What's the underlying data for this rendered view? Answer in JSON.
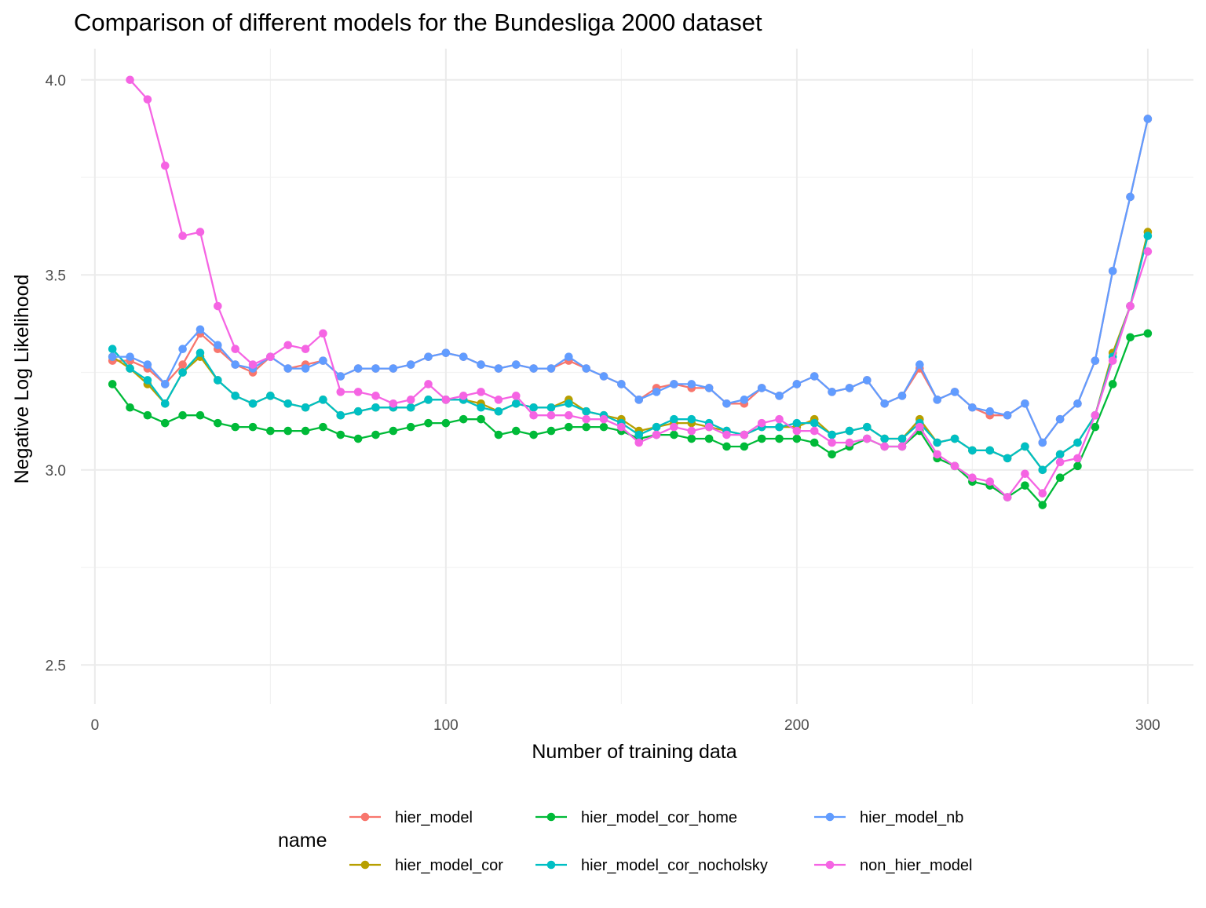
{
  "chart_data": {
    "type": "line",
    "title": "Comparison of different models for the Bundesliga 2000 dataset",
    "xlabel": "Number of training data",
    "ylabel": "Negative Log Likelihood",
    "xlim": [
      -4,
      313
    ],
    "ylim": [
      2.4,
      4.08
    ],
    "x_ticks": [
      0,
      100,
      200,
      300
    ],
    "x_tick_labels": [
      "0",
      "100",
      "200",
      "300"
    ],
    "y_ticks": [
      2.5,
      3.0,
      3.5,
      4.0
    ],
    "y_tick_labels": [
      "2.5",
      "3.0",
      "3.5",
      "4.0"
    ],
    "x_minor": [
      50,
      150,
      250
    ],
    "y_minor": [
      2.75,
      3.25,
      3.75
    ],
    "grid": true,
    "legend_title": "name",
    "legend_position": "bottom",
    "series": [
      {
        "name": "hier_model",
        "color": "#F8766D",
        "x": [
          5,
          10,
          15,
          20,
          25,
          30,
          35,
          40,
          45,
          50,
          55,
          60,
          65,
          70,
          75,
          80,
          85,
          90,
          95,
          100,
          105,
          110,
          115,
          120,
          125,
          130,
          135,
          140,
          145,
          150,
          155,
          160,
          165,
          170,
          175,
          180,
          185,
          190,
          195,
          200,
          205,
          210,
          215,
          220,
          225,
          230,
          235,
          240,
          245,
          250,
          255,
          260,
          265,
          270,
          275,
          280,
          285,
          290,
          295,
          300
        ],
        "y": [
          3.28,
          3.28,
          3.26,
          3.22,
          3.27,
          3.35,
          3.31,
          3.27,
          3.25,
          3.29,
          3.26,
          3.27,
          3.28,
          3.24,
          3.26,
          3.26,
          3.26,
          3.27,
          3.29,
          3.3,
          3.29,
          3.27,
          3.26,
          3.27,
          3.26,
          3.26,
          3.28,
          3.26,
          3.24,
          3.22,
          3.18,
          3.21,
          3.22,
          3.21,
          3.21,
          3.17,
          3.17,
          3.21,
          3.19,
          3.22,
          3.24,
          3.2,
          3.21,
          3.23,
          3.17,
          3.19,
          3.26,
          3.18,
          3.2,
          3.16,
          3.14,
          3.14,
          3.17,
          3.07,
          3.13,
          3.17,
          3.28,
          3.51,
          3.7,
          3.9
        ]
      },
      {
        "name": "hier_model_cor",
        "color": "#B79F00",
        "x": [
          5,
          10,
          15,
          20,
          25,
          30,
          35,
          40,
          45,
          50,
          55,
          60,
          65,
          70,
          75,
          80,
          85,
          90,
          95,
          100,
          105,
          110,
          115,
          120,
          125,
          130,
          135,
          140,
          145,
          150,
          155,
          160,
          165,
          170,
          175,
          180,
          185,
          190,
          195,
          200,
          205,
          210,
          215,
          220,
          225,
          230,
          235,
          240,
          245,
          250,
          255,
          260,
          265,
          270,
          275,
          280,
          285,
          290,
          295,
          300
        ],
        "y": [
          3.29,
          3.26,
          3.22,
          3.17,
          3.25,
          3.29,
          3.23,
          3.19,
          3.17,
          3.19,
          3.17,
          3.16,
          3.18,
          3.14,
          3.15,
          3.16,
          3.16,
          3.16,
          3.18,
          3.18,
          3.18,
          3.17,
          3.15,
          3.17,
          3.16,
          3.16,
          3.18,
          3.15,
          3.14,
          3.13,
          3.1,
          3.11,
          3.12,
          3.12,
          3.11,
          3.1,
          3.09,
          3.11,
          3.11,
          3.11,
          3.13,
          3.09,
          3.1,
          3.11,
          3.08,
          3.08,
          3.13,
          3.07,
          3.08,
          3.05,
          3.05,
          3.03,
          3.06,
          3.0,
          3.04,
          3.07,
          3.14,
          3.3,
          3.42,
          3.61
        ]
      },
      {
        "name": "hier_model_cor_home",
        "color": "#00BA38",
        "x": [
          5,
          10,
          15,
          20,
          25,
          30,
          35,
          40,
          45,
          50,
          55,
          60,
          65,
          70,
          75,
          80,
          85,
          90,
          95,
          100,
          105,
          110,
          115,
          120,
          125,
          130,
          135,
          140,
          145,
          150,
          155,
          160,
          165,
          170,
          175,
          180,
          185,
          190,
          195,
          200,
          205,
          210,
          215,
          220,
          225,
          230,
          235,
          240,
          245,
          250,
          255,
          260,
          265,
          270,
          275,
          280,
          285,
          290,
          295,
          300
        ],
        "y": [
          3.22,
          3.16,
          3.14,
          3.12,
          3.14,
          3.14,
          3.12,
          3.11,
          3.11,
          3.1,
          3.1,
          3.1,
          3.11,
          3.09,
          3.08,
          3.09,
          3.1,
          3.11,
          3.12,
          3.12,
          3.13,
          3.13,
          3.09,
          3.1,
          3.09,
          3.1,
          3.11,
          3.11,
          3.11,
          3.1,
          3.08,
          3.09,
          3.09,
          3.08,
          3.08,
          3.06,
          3.06,
          3.08,
          3.08,
          3.08,
          3.07,
          3.04,
          3.06,
          3.08,
          3.06,
          3.06,
          3.1,
          3.03,
          3.01,
          2.97,
          2.96,
          2.93,
          2.96,
          2.91,
          2.98,
          3.01,
          3.11,
          3.22,
          3.34,
          3.35
        ]
      },
      {
        "name": "hier_model_cor_nocholsky",
        "color": "#00BFC4",
        "x": [
          5,
          10,
          15,
          20,
          25,
          30,
          35,
          40,
          45,
          50,
          55,
          60,
          65,
          70,
          75,
          80,
          85,
          90,
          95,
          100,
          105,
          110,
          115,
          120,
          125,
          130,
          135,
          140,
          145,
          150,
          155,
          160,
          165,
          170,
          175,
          180,
          185,
          190,
          195,
          200,
          205,
          210,
          215,
          220,
          225,
          230,
          235,
          240,
          245,
          250,
          255,
          260,
          265,
          270,
          275,
          280,
          285,
          290,
          295,
          300
        ],
        "y": [
          3.31,
          3.26,
          3.23,
          3.17,
          3.25,
          3.3,
          3.23,
          3.19,
          3.17,
          3.19,
          3.17,
          3.16,
          3.18,
          3.14,
          3.15,
          3.16,
          3.16,
          3.16,
          3.18,
          3.18,
          3.18,
          3.16,
          3.15,
          3.17,
          3.16,
          3.16,
          3.17,
          3.15,
          3.14,
          3.12,
          3.09,
          3.11,
          3.13,
          3.13,
          3.12,
          3.1,
          3.09,
          3.11,
          3.11,
          3.12,
          3.12,
          3.09,
          3.1,
          3.11,
          3.08,
          3.08,
          3.12,
          3.07,
          3.08,
          3.05,
          3.05,
          3.03,
          3.06,
          3.0,
          3.04,
          3.07,
          3.14,
          3.29,
          3.42,
          3.6
        ]
      },
      {
        "name": "hier_model_nb",
        "color": "#619CFF",
        "x": [
          5,
          10,
          15,
          20,
          25,
          30,
          35,
          40,
          45,
          50,
          55,
          60,
          65,
          70,
          75,
          80,
          85,
          90,
          95,
          100,
          105,
          110,
          115,
          120,
          125,
          130,
          135,
          140,
          145,
          150,
          155,
          160,
          165,
          170,
          175,
          180,
          185,
          190,
          195,
          200,
          205,
          210,
          215,
          220,
          225,
          230,
          235,
          240,
          245,
          250,
          255,
          260,
          265,
          270,
          275,
          280,
          285,
          290,
          295,
          300
        ],
        "y": [
          3.29,
          3.29,
          3.27,
          3.22,
          3.31,
          3.36,
          3.32,
          3.27,
          3.26,
          3.29,
          3.26,
          3.26,
          3.28,
          3.24,
          3.26,
          3.26,
          3.26,
          3.27,
          3.29,
          3.3,
          3.29,
          3.27,
          3.26,
          3.27,
          3.26,
          3.26,
          3.29,
          3.26,
          3.24,
          3.22,
          3.18,
          3.2,
          3.22,
          3.22,
          3.21,
          3.17,
          3.18,
          3.21,
          3.19,
          3.22,
          3.24,
          3.2,
          3.21,
          3.23,
          3.17,
          3.19,
          3.27,
          3.18,
          3.2,
          3.16,
          3.15,
          3.14,
          3.17,
          3.07,
          3.13,
          3.17,
          3.28,
          3.51,
          3.7,
          3.9
        ]
      },
      {
        "name": "non_hier_model",
        "color": "#F564E3",
        "x": [
          10,
          15,
          20,
          25,
          30,
          35,
          40,
          45,
          50,
          55,
          60,
          65,
          70,
          75,
          80,
          85,
          90,
          95,
          100,
          105,
          110,
          115,
          120,
          125,
          130,
          135,
          140,
          145,
          150,
          155,
          160,
          165,
          170,
          175,
          180,
          185,
          190,
          195,
          200,
          205,
          210,
          215,
          220,
          225,
          230,
          235,
          240,
          245,
          250,
          255,
          260,
          265,
          270,
          275,
          280,
          285,
          290,
          295,
          300
        ],
        "y": [
          4.0,
          3.95,
          3.78,
          3.6,
          3.61,
          3.42,
          3.31,
          3.27,
          3.29,
          3.32,
          3.31,
          3.35,
          3.2,
          3.2,
          3.19,
          3.17,
          3.18,
          3.22,
          3.18,
          3.19,
          3.2,
          3.18,
          3.19,
          3.14,
          3.14,
          3.14,
          3.13,
          3.13,
          3.11,
          3.07,
          3.09,
          3.11,
          3.1,
          3.11,
          3.09,
          3.09,
          3.12,
          3.13,
          3.1,
          3.1,
          3.07,
          3.07,
          3.08,
          3.06,
          3.06,
          3.11,
          3.04,
          3.01,
          2.98,
          2.97,
          2.93,
          2.99,
          2.94,
          3.02,
          3.03,
          3.14,
          3.28,
          3.42,
          3.56
        ]
      }
    ]
  }
}
